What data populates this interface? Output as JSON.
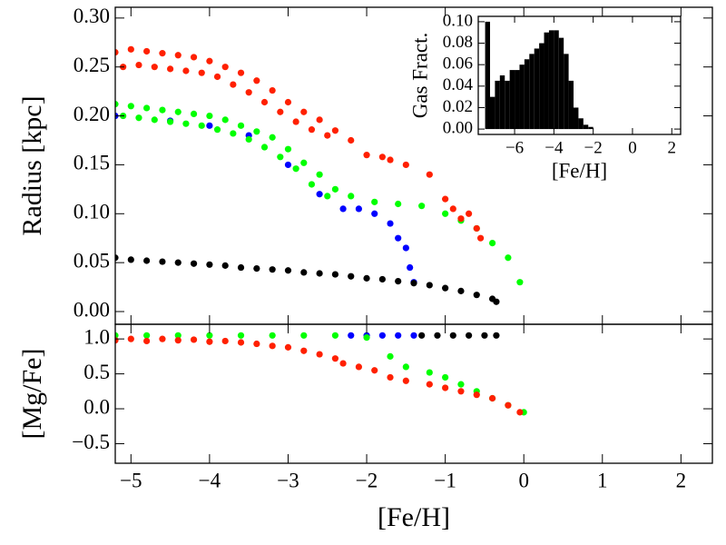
{
  "chart_data": [
    {
      "type": "scatter",
      "ylabel": "Radius [kpc]",
      "xlim": [
        -5.2,
        2.4
      ],
      "xticks": [
        -5,
        -4,
        -3,
        -2,
        -1,
        0,
        1,
        2
      ],
      "ylim": [
        -0.013,
        0.311
      ],
      "yticks": [
        {
          "value": 0,
          "label": "0.00"
        },
        {
          "value": 0.05,
          "label": "0.05"
        },
        {
          "value": 0.1,
          "label": "0.10"
        },
        {
          "value": 0.15,
          "label": "0.15"
        },
        {
          "value": 0.2,
          "label": "0.20"
        },
        {
          "value": 0.25,
          "label": "0.25"
        },
        {
          "value": 0.3,
          "label": "0.30"
        }
      ],
      "series": [
        {
          "color": "#0000ff",
          "x": [
            -5.2,
            -4.5,
            -4.0,
            -3.5,
            -3.0,
            -2.6,
            -2.3,
            -2.1,
            -1.9,
            -1.7,
            -1.6,
            -1.5,
            -1.45,
            -1.4
          ],
          "values": [
            0.2,
            0.195,
            0.19,
            0.18,
            0.15,
            0.12,
            0.105,
            0.105,
            0.1,
            0.09,
            0.075,
            0.065,
            0.045,
            0.03
          ]
        },
        {
          "color": "#00ff00",
          "x": [
            -5.2,
            -5.1,
            -5.0,
            -4.9,
            -4.8,
            -4.7,
            -4.6,
            -4.5,
            -4.4,
            -4.3,
            -4.2,
            -4.1,
            -4.0,
            -3.9,
            -3.8,
            -3.7,
            -3.6,
            -3.5,
            -3.4,
            -3.3,
            -3.2,
            -3.1,
            -3.0,
            -2.9,
            -2.8,
            -2.7,
            -2.6,
            -2.5,
            -2.4,
            -2.2,
            -1.9,
            -1.6,
            -1.3,
            -1.0,
            -0.8,
            -0.6,
            -0.4,
            -0.2,
            -0.05
          ],
          "values": [
            0.212,
            0.2,
            0.21,
            0.198,
            0.208,
            0.196,
            0.206,
            0.194,
            0.204,
            0.192,
            0.202,
            0.19,
            0.2,
            0.186,
            0.196,
            0.182,
            0.19,
            0.176,
            0.184,
            0.168,
            0.178,
            0.158,
            0.166,
            0.146,
            0.152,
            0.13,
            0.14,
            0.118,
            0.125,
            0.118,
            0.112,
            0.11,
            0.108,
            0.1,
            0.093,
            0.085,
            0.07,
            0.055,
            0.03
          ]
        },
        {
          "color": "#ff2000",
          "x": [
            -5.2,
            -5.1,
            -5.0,
            -4.9,
            -4.8,
            -4.7,
            -4.6,
            -4.5,
            -4.4,
            -4.3,
            -4.2,
            -4.1,
            -4.0,
            -3.9,
            -3.8,
            -3.7,
            -3.6,
            -3.5,
            -3.4,
            -3.3,
            -3.2,
            -3.1,
            -3.0,
            -2.9,
            -2.8,
            -2.7,
            -2.6,
            -2.5,
            -2.4,
            -2.2,
            -2.0,
            -1.8,
            -1.7,
            -1.5,
            -1.2,
            -1.0,
            -0.9,
            -0.8,
            -0.7,
            -0.6,
            -0.55
          ],
          "values": [
            0.265,
            0.25,
            0.268,
            0.252,
            0.266,
            0.25,
            0.264,
            0.248,
            0.262,
            0.246,
            0.26,
            0.244,
            0.256,
            0.24,
            0.25,
            0.232,
            0.244,
            0.224,
            0.236,
            0.214,
            0.226,
            0.204,
            0.214,
            0.194,
            0.204,
            0.186,
            0.196,
            0.18,
            0.185,
            0.175,
            0.16,
            0.158,
            0.155,
            0.15,
            0.14,
            0.115,
            0.105,
            0.095,
            0.1,
            0.085,
            0.075
          ]
        },
        {
          "color": "#000000",
          "x": [
            -5.2,
            -5.0,
            -4.8,
            -4.6,
            -4.4,
            -4.2,
            -4.0,
            -3.8,
            -3.6,
            -3.4,
            -3.2,
            -3.0,
            -2.8,
            -2.6,
            -2.4,
            -2.2,
            -2.0,
            -1.8,
            -1.6,
            -1.4,
            -1.2,
            -1.0,
            -0.8,
            -0.6,
            -0.4,
            -0.35
          ],
          "values": [
            0.055,
            0.053,
            0.052,
            0.051,
            0.05,
            0.049,
            0.048,
            0.047,
            0.045,
            0.044,
            0.043,
            0.042,
            0.04,
            0.039,
            0.038,
            0.036,
            0.034,
            0.033,
            0.031,
            0.029,
            0.027,
            0.024,
            0.021,
            0.017,
            0.013,
            0.01
          ]
        }
      ]
    },
    {
      "type": "scatter",
      "xlabel": "[Fe/H]",
      "ylabel": "[Mg/Fe]",
      "xlim": [
        -5.2,
        2.4
      ],
      "xticks": [
        {
          "value": -5,
          "label": "−5"
        },
        {
          "value": -4,
          "label": "−4"
        },
        {
          "value": -3,
          "label": "−3"
        },
        {
          "value": -2,
          "label": "−2"
        },
        {
          "value": -1,
          "label": "−1"
        },
        0,
        1,
        2
      ],
      "ylim": [
        -0.78,
        1.21
      ],
      "yticks": [
        {
          "value": -0.5,
          "label": "−0.5"
        },
        {
          "value": 0,
          "label": "0.0"
        },
        0.5,
        {
          "value": 1,
          "label": "1.0"
        }
      ],
      "series": [
        {
          "color": "#0000ff",
          "x": [
            -2.2,
            -2.0,
            -1.8,
            -1.6,
            -1.4
          ],
          "values": [
            1.05,
            1.05,
            1.05,
            1.05,
            1.05
          ]
        },
        {
          "color": "#00ff00",
          "x": [
            -5.2,
            -4.8,
            -4.4,
            -4.0,
            -3.6,
            -3.2,
            -2.8,
            -2.4,
            -2.0,
            -1.7,
            -1.5,
            -1.2,
            -1.0,
            -0.8,
            -0.6,
            -0.4,
            -0.2,
            0.0
          ],
          "values": [
            1.05,
            1.05,
            1.05,
            1.05,
            1.05,
            1.05,
            1.05,
            1.05,
            1.02,
            0.75,
            0.6,
            0.52,
            0.45,
            0.35,
            0.25,
            0.15,
            0.05,
            -0.05
          ]
        },
        {
          "color": "#ff2000",
          "x": [
            -5.2,
            -5.0,
            -4.8,
            -4.6,
            -4.4,
            -4.2,
            -4.0,
            -3.8,
            -3.6,
            -3.4,
            -3.2,
            -3.0,
            -2.8,
            -2.6,
            -2.4,
            -2.3,
            -2.1,
            -1.9,
            -1.7,
            -1.5,
            -1.2,
            -1.0,
            -0.8,
            -0.6,
            -0.4,
            -0.2,
            -0.05
          ],
          "values": [
            0.98,
            1.0,
            0.97,
            1.0,
            0.98,
            0.99,
            0.96,
            0.97,
            0.95,
            0.93,
            0.9,
            0.88,
            0.83,
            0.78,
            0.72,
            0.65,
            0.6,
            0.55,
            0.45,
            0.4,
            0.35,
            0.3,
            0.25,
            0.2,
            0.15,
            0.05,
            -0.05
          ]
        },
        {
          "color": "#000000",
          "x": [
            -1.3,
            -1.1,
            -0.9,
            -0.7,
            -0.5,
            -0.35
          ],
          "values": [
            1.05,
            1.05,
            1.05,
            1.05,
            1.05,
            1.05
          ]
        }
      ]
    },
    {
      "type": "histogram",
      "xlabel": "[Fe/H]",
      "ylabel": "Gas Fract.",
      "color": "#000000",
      "xlim": [
        -7.85,
        2.45
      ],
      "xticks": [
        {
          "value": -6,
          "label": "−6"
        },
        {
          "value": -4,
          "label": "−4"
        },
        {
          "value": -2,
          "label": "−2"
        },
        0,
        2
      ],
      "ylim": [
        -0.005,
        0.105
      ],
      "yticks": [
        {
          "value": 0,
          "label": "0.00"
        },
        {
          "value": 0.02,
          "label": "0.02"
        },
        {
          "value": 0.04,
          "label": "0.04"
        },
        {
          "value": 0.06,
          "label": "0.06"
        },
        {
          "value": 0.08,
          "label": "0.08"
        },
        {
          "value": 0.1,
          "label": "0.10"
        }
      ],
      "bins": [
        -7.5,
        -7.25,
        -7.0,
        -6.75,
        -6.5,
        -6.25,
        -6.0,
        -5.75,
        -5.5,
        -5.25,
        -5.0,
        -4.75,
        -4.5,
        -4.25,
        -4.0,
        -3.75,
        -3.5,
        -3.25,
        -3.0,
        -2.75,
        -2.5,
        -2.25,
        -2.0
      ],
      "values": [
        0.1,
        0.03,
        0.045,
        0.05,
        0.045,
        0.055,
        0.055,
        0.06,
        0.065,
        0.07,
        0.075,
        0.08,
        0.09,
        0.092,
        0.092,
        0.085,
        0.07,
        0.045,
        0.02,
        0.01,
        0.004,
        0.002
      ]
    }
  ]
}
